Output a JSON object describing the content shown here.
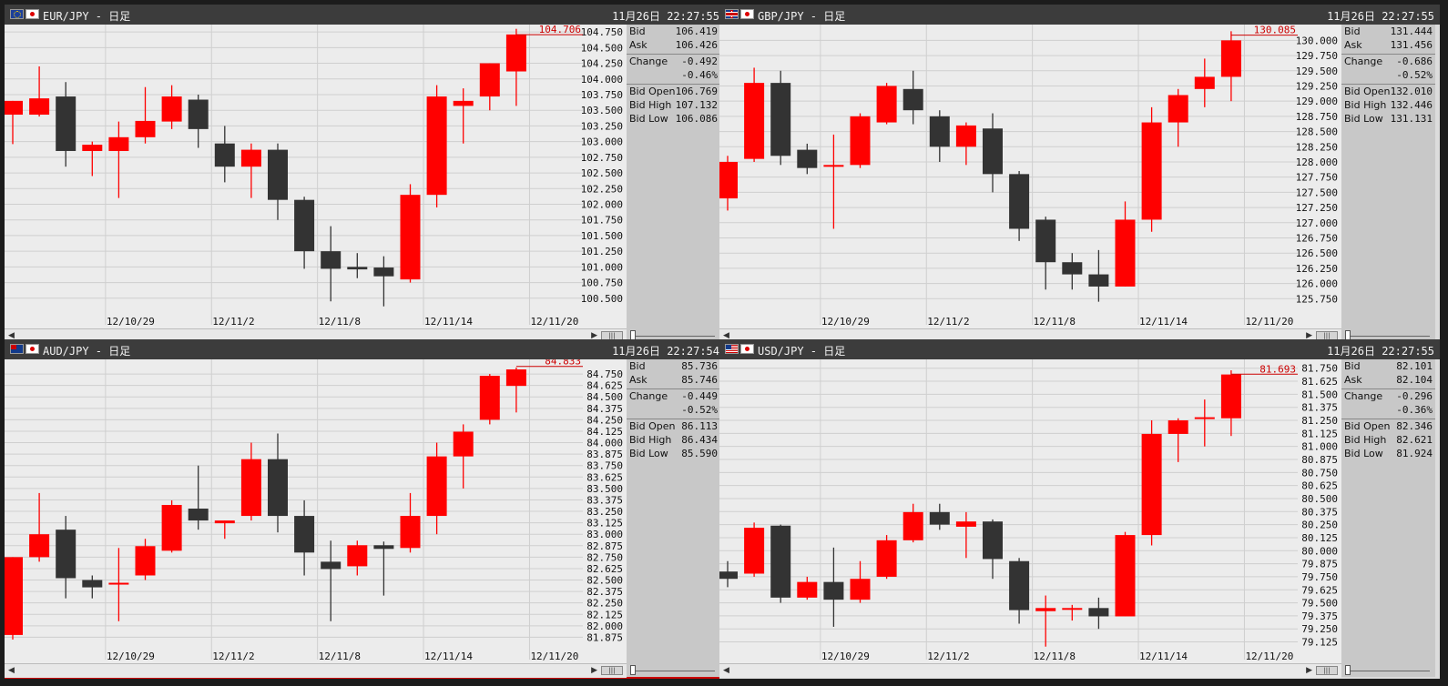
{
  "colors": {
    "up": "#ff0000",
    "down": "#333333",
    "last_line": "#cc0000",
    "grid": "#cfcfcf",
    "bg": "#ececec"
  },
  "panels": [
    {
      "id": "eur",
      "pair_title": "EUR/JPY - 日足",
      "timestamp": "11月26日 22:27:55",
      "flags": [
        "eu-flag-icon",
        "jp-flag-icon"
      ],
      "active": false,
      "info": {
        "bid_label": "Bid",
        "bid": "106.419",
        "ask_label": "Ask",
        "ask": "106.426",
        "change_label": "Change",
        "change": "-0.492",
        "change_pct": "-0.46%",
        "bid_open_label": "Bid Open",
        "bid_open": "106.769",
        "bid_high_label": "Bid High",
        "bid_high": "107.132",
        "bid_low_label": "Bid Low",
        "bid_low": "106.086"
      },
      "scroll_thumb": "|||",
      "chart_data": {
        "type": "candlestick",
        "y_range": [
          100.25,
          104.81
        ],
        "y_ticks": [
          "104.750",
          "104.500",
          "104.250",
          "104.000",
          "103.750",
          "103.500",
          "103.250",
          "103.000",
          "102.750",
          "102.500",
          "102.250",
          "102.000",
          "101.750",
          "101.500",
          "101.250",
          "101.000",
          "100.750",
          "100.500"
        ],
        "x_labels": [
          {
            "text": "12/10/29",
            "index": 3.5
          },
          {
            "text": "12/11/2",
            "index": 7.5
          },
          {
            "text": "12/11/8",
            "index": 11.5
          },
          {
            "text": "12/11/14",
            "index": 15.5
          },
          {
            "text": "12/11/20",
            "index": 19.5
          }
        ],
        "last_price": "104.706",
        "last_value": 104.706,
        "candles": [
          {
            "o": 103.43,
            "h": 103.65,
            "l": 102.96,
            "c": 103.65
          },
          {
            "o": 103.43,
            "h": 104.2,
            "l": 103.4,
            "c": 103.69
          },
          {
            "o": 103.72,
            "h": 103.95,
            "l": 102.6,
            "c": 102.85
          },
          {
            "o": 102.85,
            "h": 103.0,
            "l": 102.45,
            "c": 102.95
          },
          {
            "o": 102.85,
            "h": 103.32,
            "l": 102.1,
            "c": 103.07
          },
          {
            "o": 103.07,
            "h": 103.87,
            "l": 102.97,
            "c": 103.33
          },
          {
            "o": 103.32,
            "h": 103.9,
            "l": 103.2,
            "c": 103.72
          },
          {
            "o": 103.67,
            "h": 103.75,
            "l": 102.9,
            "c": 103.2
          },
          {
            "o": 102.97,
            "h": 103.25,
            "l": 102.35,
            "c": 102.6
          },
          {
            "o": 102.6,
            "h": 102.97,
            "l": 102.1,
            "c": 102.87
          },
          {
            "o": 102.87,
            "h": 102.97,
            "l": 101.75,
            "c": 102.07
          },
          {
            "o": 102.07,
            "h": 102.12,
            "l": 100.97,
            "c": 101.25
          },
          {
            "o": 101.25,
            "h": 101.65,
            "l": 100.45,
            "c": 100.97
          },
          {
            "o": 101.0,
            "h": 101.22,
            "l": 100.82,
            "c": 100.96
          },
          {
            "o": 100.99,
            "h": 101.17,
            "l": 100.37,
            "c": 100.85
          },
          {
            "o": 100.8,
            "h": 102.32,
            "l": 100.75,
            "c": 102.15
          },
          {
            "o": 102.15,
            "h": 103.9,
            "l": 101.95,
            "c": 103.72
          },
          {
            "o": 103.57,
            "h": 103.85,
            "l": 102.97,
            "c": 103.65
          },
          {
            "o": 103.72,
            "h": 104.25,
            "l": 103.5,
            "c": 104.25
          },
          {
            "o": 104.12,
            "h": 104.8,
            "l": 103.57,
            "c": 104.71
          }
        ]
      }
    },
    {
      "id": "gbp",
      "pair_title": "GBP/JPY - 日足",
      "timestamp": "11月26日 22:27:55",
      "flags": [
        "gb-flag-icon",
        "jp-flag-icon"
      ],
      "active": false,
      "info": {
        "bid_label": "Bid",
        "bid": "131.444",
        "ask_label": "Ask",
        "ask": "131.456",
        "change_label": "Change",
        "change": "-0.686",
        "change_pct": "-0.52%",
        "bid_open_label": "Bid Open",
        "bid_open": "132.010",
        "bid_high_label": "Bid High",
        "bid_high": "132.446",
        "bid_low_label": "Bid Low",
        "bid_low": "131.131"
      },
      "scroll_thumb": "|||",
      "chart_data": {
        "type": "candlestick",
        "y_range": [
          125.5,
          130.2
        ],
        "y_ticks": [
          "130.000",
          "129.750",
          "129.500",
          "129.250",
          "129.000",
          "128.750",
          "128.500",
          "128.250",
          "128.000",
          "127.750",
          "127.500",
          "127.250",
          "127.000",
          "126.750",
          "126.500",
          "126.250",
          "126.000",
          "125.750"
        ],
        "x_labels": [
          {
            "text": "12/10/29",
            "index": 3.5
          },
          {
            "text": "12/11/2",
            "index": 7.5
          },
          {
            "text": "12/11/8",
            "index": 11.5
          },
          {
            "text": "12/11/14",
            "index": 15.5
          },
          {
            "text": "12/11/20",
            "index": 19.5
          }
        ],
        "last_price": "130.085",
        "last_value": 130.085,
        "candles": [
          {
            "o": 127.4,
            "h": 128.1,
            "l": 127.2,
            "c": 128.0
          },
          {
            "o": 128.05,
            "h": 129.55,
            "l": 128.0,
            "c": 129.3
          },
          {
            "o": 129.3,
            "h": 129.5,
            "l": 127.95,
            "c": 128.1
          },
          {
            "o": 128.2,
            "h": 128.3,
            "l": 127.8,
            "c": 127.9
          },
          {
            "o": 127.95,
            "h": 128.45,
            "l": 126.9,
            "c": 127.95
          },
          {
            "o": 127.95,
            "h": 128.8,
            "l": 127.9,
            "c": 128.75
          },
          {
            "o": 128.65,
            "h": 129.3,
            "l": 128.62,
            "c": 129.25
          },
          {
            "o": 129.2,
            "h": 129.5,
            "l": 128.62,
            "c": 128.85
          },
          {
            "o": 128.75,
            "h": 128.85,
            "l": 128.0,
            "c": 128.25
          },
          {
            "o": 128.25,
            "h": 128.65,
            "l": 127.95,
            "c": 128.6
          },
          {
            "o": 128.55,
            "h": 128.8,
            "l": 127.5,
            "c": 127.8
          },
          {
            "o": 127.8,
            "h": 127.85,
            "l": 126.7,
            "c": 126.9
          },
          {
            "o": 127.05,
            "h": 127.1,
            "l": 125.9,
            "c": 126.35
          },
          {
            "o": 126.35,
            "h": 126.5,
            "l": 125.9,
            "c": 126.15
          },
          {
            "o": 126.15,
            "h": 126.55,
            "l": 125.7,
            "c": 125.95
          },
          {
            "o": 125.95,
            "h": 127.35,
            "l": 125.95,
            "c": 127.05
          },
          {
            "o": 127.05,
            "h": 128.9,
            "l": 126.85,
            "c": 128.65
          },
          {
            "o": 128.65,
            "h": 129.2,
            "l": 128.25,
            "c": 129.1
          },
          {
            "o": 129.2,
            "h": 129.7,
            "l": 128.9,
            "c": 129.4
          },
          {
            "o": 129.4,
            "h": 130.15,
            "l": 129.0,
            "c": 130.0
          }
        ]
      }
    },
    {
      "id": "aud",
      "pair_title": "AUD/JPY - 日足",
      "timestamp": "11月26日 22:27:54",
      "flags": [
        "au-flag-icon",
        "jp-flag-icon"
      ],
      "active": true,
      "info": {
        "bid_label": "Bid",
        "bid": "85.736",
        "ask_label": "Ask",
        "ask": "85.746",
        "change_label": "Change",
        "change": "-0.449",
        "change_pct": "-0.52%",
        "bid_open_label": "Bid Open",
        "bid_open": "86.113",
        "bid_high_label": "Bid High",
        "bid_high": "86.434",
        "bid_low_label": "Bid Low",
        "bid_low": "85.590"
      },
      "scroll_thumb": "|||",
      "chart_data": {
        "type": "candlestick",
        "y_range": [
          81.75,
          84.87
        ],
        "y_ticks": [
          "84.750",
          "84.625",
          "84.500",
          "84.375",
          "84.250",
          "84.125",
          "84.000",
          "83.875",
          "83.750",
          "83.625",
          "83.500",
          "83.375",
          "83.250",
          "83.125",
          "83.000",
          "82.875",
          "82.750",
          "82.625",
          "82.500",
          "82.375",
          "82.250",
          "82.125",
          "82.000",
          "81.875"
        ],
        "x_labels": [
          {
            "text": "12/10/29",
            "index": 3.5
          },
          {
            "text": "12/11/2",
            "index": 7.5
          },
          {
            "text": "12/11/8",
            "index": 11.5
          },
          {
            "text": "12/11/14",
            "index": 15.5
          },
          {
            "text": "12/11/20",
            "index": 19.5
          }
        ],
        "last_price": "84.833",
        "last_value": 84.833,
        "candles": [
          {
            "o": 81.9,
            "h": 82.75,
            "l": 81.85,
            "c": 82.75
          },
          {
            "o": 82.75,
            "h": 83.45,
            "l": 82.7,
            "c": 83.0
          },
          {
            "o": 83.05,
            "h": 83.2,
            "l": 82.3,
            "c": 82.52
          },
          {
            "o": 82.5,
            "h": 82.55,
            "l": 82.3,
            "c": 82.42
          },
          {
            "o": 82.45,
            "h": 82.85,
            "l": 82.05,
            "c": 82.47
          },
          {
            "o": 82.55,
            "h": 82.95,
            "l": 82.5,
            "c": 82.87
          },
          {
            "o": 82.82,
            "h": 83.37,
            "l": 82.8,
            "c": 83.32
          },
          {
            "o": 83.28,
            "h": 83.75,
            "l": 83.05,
            "c": 83.15
          },
          {
            "o": 83.12,
            "h": 83.15,
            "l": 82.95,
            "c": 83.15
          },
          {
            "o": 83.2,
            "h": 84.0,
            "l": 83.15,
            "c": 83.82
          },
          {
            "o": 83.82,
            "h": 84.1,
            "l": 83.02,
            "c": 83.2
          },
          {
            "o": 83.2,
            "h": 83.37,
            "l": 82.55,
            "c": 82.8
          },
          {
            "o": 82.7,
            "h": 82.93,
            "l": 82.05,
            "c": 82.62
          },
          {
            "o": 82.65,
            "h": 82.93,
            "l": 82.55,
            "c": 82.88
          },
          {
            "o": 82.88,
            "h": 82.92,
            "l": 82.33,
            "c": 82.84
          },
          {
            "o": 82.85,
            "h": 83.45,
            "l": 82.8,
            "c": 83.2
          },
          {
            "o": 83.2,
            "h": 84.0,
            "l": 83.0,
            "c": 83.85
          },
          {
            "o": 83.85,
            "h": 84.2,
            "l": 83.5,
            "c": 84.12
          },
          {
            "o": 84.25,
            "h": 84.75,
            "l": 84.2,
            "c": 84.73
          },
          {
            "o": 84.62,
            "h": 84.82,
            "l": 84.33,
            "c": 84.8
          }
        ]
      }
    },
    {
      "id": "usd",
      "pair_title": "USD/JPY - 日足",
      "timestamp": "11月26日 22:27:55",
      "flags": [
        "us-flag-icon",
        "jp-flag-icon"
      ],
      "active": false,
      "info": {
        "bid_label": "Bid",
        "bid": "82.101",
        "ask_label": "Ask",
        "ask": "82.104",
        "change_label": "Change",
        "change": "-0.296",
        "change_pct": "-0.36%",
        "bid_open_label": "Bid Open",
        "bid_open": "82.346",
        "bid_high_label": "Bid High",
        "bid_high": "82.621",
        "bid_low_label": "Bid Low",
        "bid_low": "81.924"
      },
      "scroll_thumb": "|||",
      "chart_data": {
        "type": "candlestick",
        "y_range": [
          79.06,
          81.8
        ],
        "y_ticks": [
          "81.750",
          "81.625",
          "81.500",
          "81.375",
          "81.250",
          "81.125",
          "81.000",
          "80.875",
          "80.750",
          "80.625",
          "80.500",
          "80.375",
          "80.250",
          "80.125",
          "80.000",
          "79.875",
          "79.750",
          "79.625",
          "79.500",
          "79.375",
          "79.250",
          "79.125"
        ],
        "x_labels": [
          {
            "text": "12/10/29",
            "index": 3.5
          },
          {
            "text": "12/11/2",
            "index": 7.5
          },
          {
            "text": "12/11/8",
            "index": 11.5
          },
          {
            "text": "12/11/14",
            "index": 15.5
          },
          {
            "text": "12/11/20",
            "index": 19.5
          }
        ],
        "last_price": "81.693",
        "last_value": 81.693,
        "candles": [
          {
            "o": 79.8,
            "h": 79.9,
            "l": 79.65,
            "c": 79.73
          },
          {
            "o": 79.78,
            "h": 80.27,
            "l": 79.75,
            "c": 80.22
          },
          {
            "o": 80.24,
            "h": 80.25,
            "l": 79.5,
            "c": 79.55
          },
          {
            "o": 79.55,
            "h": 79.75,
            "l": 79.53,
            "c": 79.7
          },
          {
            "o": 79.7,
            "h": 80.03,
            "l": 79.27,
            "c": 79.53
          },
          {
            "o": 79.53,
            "h": 79.9,
            "l": 79.5,
            "c": 79.73
          },
          {
            "o": 79.75,
            "h": 80.15,
            "l": 79.73,
            "c": 80.1
          },
          {
            "o": 80.1,
            "h": 80.45,
            "l": 80.08,
            "c": 80.37
          },
          {
            "o": 80.37,
            "h": 80.45,
            "l": 80.2,
            "c": 80.25
          },
          {
            "o": 80.23,
            "h": 80.37,
            "l": 79.93,
            "c": 80.28
          },
          {
            "o": 80.28,
            "h": 80.3,
            "l": 79.73,
            "c": 79.92
          },
          {
            "o": 79.9,
            "h": 79.93,
            "l": 79.3,
            "c": 79.43
          },
          {
            "o": 79.42,
            "h": 79.57,
            "l": 79.08,
            "c": 79.45
          },
          {
            "o": 79.45,
            "h": 79.48,
            "l": 79.33,
            "c": 79.45
          },
          {
            "o": 79.45,
            "h": 79.55,
            "l": 79.25,
            "c": 79.37
          },
          {
            "o": 79.37,
            "h": 80.18,
            "l": 79.37,
            "c": 80.15
          },
          {
            "o": 80.15,
            "h": 81.25,
            "l": 80.05,
            "c": 81.12
          },
          {
            "o": 81.12,
            "h": 81.27,
            "l": 80.85,
            "c": 81.25
          },
          {
            "o": 81.27,
            "h": 81.45,
            "l": 81.0,
            "c": 81.28
          },
          {
            "o": 81.27,
            "h": 81.73,
            "l": 81.1,
            "c": 81.69
          }
        ]
      }
    }
  ]
}
